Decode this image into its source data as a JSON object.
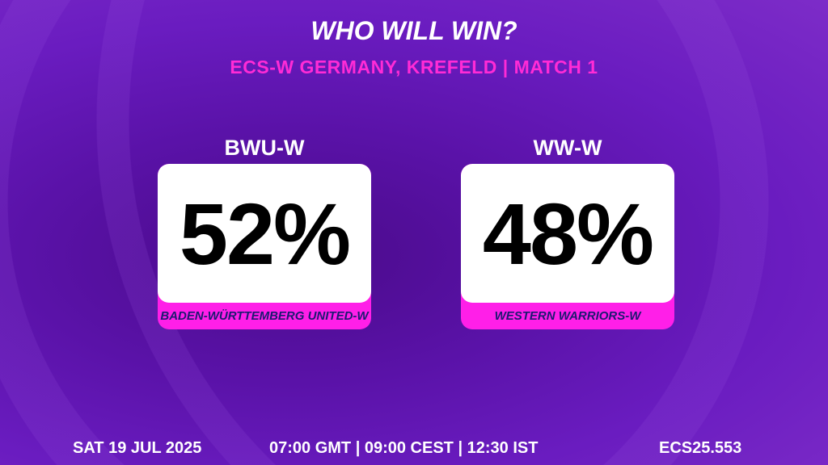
{
  "header": {
    "title": "WHO WILL WIN?",
    "subtitle": "ECS-W GERMANY, KREFELD | MATCH 1"
  },
  "teams": [
    {
      "code": "BWU-W",
      "percent": "52%",
      "name": "BADEN-WÜRTTEMBERG UNITED-W"
    },
    {
      "code": "WW-W",
      "percent": "48%",
      "name": "WESTERN WARRIORS-W"
    }
  ],
  "footer": {
    "date": "SAT 19 JUL 2025",
    "times": "07:00 GMT | 09:00 CEST | 12:30 IST",
    "match_code": "ECS25.553"
  },
  "colors": {
    "accent": "#ff1fe8",
    "background": "#5a12a8",
    "team_name": "#1c1a70"
  }
}
